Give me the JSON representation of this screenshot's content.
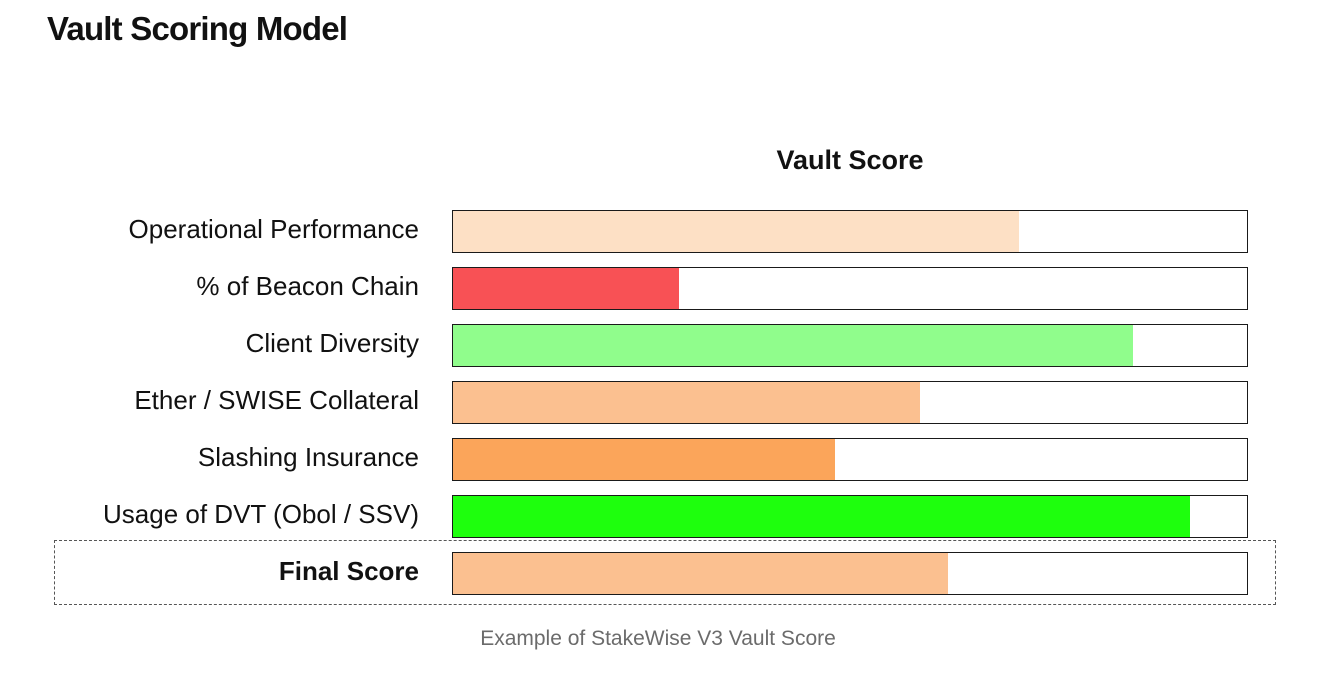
{
  "heading": "Vault Scoring Model",
  "caption": "Example of StakeWise V3 Vault Score",
  "chart_data": {
    "type": "bar",
    "orientation": "horizontal",
    "title": "Vault Score",
    "xlabel": "",
    "ylabel": "",
    "xlim": [
      0,
      100
    ],
    "grid": false,
    "categories": [
      "Operational Performance",
      "% of Beacon Chain",
      "Client Diversity",
      "Ether / SWISE Collateral",
      "Slashing Insurance",
      "Usage of DVT (Obol / SSV)",
      "Final Score"
    ],
    "values": [
      71.3,
      28.5,
      85.7,
      58.8,
      48.1,
      92.8,
      62.3
    ],
    "colors": [
      "#fde0c5",
      "#f85155",
      "#90fd8c",
      "#fbc090",
      "#fba55a",
      "#1eff0d",
      "#fbc090"
    ],
    "highlighted_category": "Final Score"
  }
}
